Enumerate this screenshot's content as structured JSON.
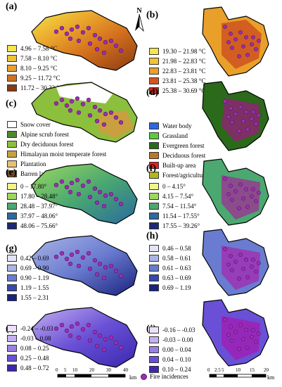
{
  "panels": [
    {
      "label": "(a)",
      "legend": [
        {
          "text": "4.96 – 7.58 °C",
          "color": "#f5e64a"
        },
        {
          "text": "7.58 – 8.10 °C",
          "color": "#f2c236"
        },
        {
          "text": "8.10 – 9.25 °C",
          "color": "#e8a02a"
        },
        {
          "text": "9.25 – 11.72 °C",
          "color": "#d4711e"
        },
        {
          "text": "11.72 – 30.33 °C",
          "color": "#8a3a12"
        }
      ]
    },
    {
      "label": "(b)",
      "legend": [
        {
          "text": "19.30 – 21.98 °C",
          "color": "#f5e64a"
        },
        {
          "text": "21.98 – 22.83 °C",
          "color": "#f2c236"
        },
        {
          "text": "22.83 – 23.81 °C",
          "color": "#e8a02a"
        },
        {
          "text": "23.81 – 25.38 °C",
          "color": "#d4551e"
        },
        {
          "text": "25.38 – 30.69 °C",
          "color": "#c0281a"
        }
      ]
    },
    {
      "label": "(c)",
      "legend": [
        {
          "text": "Snow cover",
          "color": "#ffffff"
        },
        {
          "text": "Alpine scrub forest",
          "color": "#4d8a2a"
        },
        {
          "text": "Dry deciduous forest",
          "color": "#8cbf3c"
        },
        {
          "text": "Himalayan moist temperate forest",
          "color": "#c8a040"
        },
        {
          "text": "Plantation",
          "color": "#e8c070"
        },
        {
          "text": "Barren land",
          "color": "#7a4a20"
        }
      ]
    },
    {
      "label": "(d)",
      "legend": [
        {
          "text": "Water body",
          "color": "#2a6ae0"
        },
        {
          "text": "Grassland",
          "color": "#5ccc3a"
        },
        {
          "text": "Evergreen forest",
          "color": "#2a6a1a"
        },
        {
          "text": "Deciduous forest",
          "color": "#b87a28"
        },
        {
          "text": "Built-up area",
          "color": "#e02020"
        },
        {
          "text": "Forest/agricultural plantation",
          "color": "#b4b420"
        }
      ]
    },
    {
      "label": "(e)",
      "legend": [
        {
          "text": "0 – 17.80°",
          "color": "#f0f58a"
        },
        {
          "text": "17.80 – 28.48°",
          "color": "#9cd860"
        },
        {
          "text": "28.48 – 37.97°",
          "color": "#4aa870"
        },
        {
          "text": "37.97 – 48.06°",
          "color": "#2a6aa0"
        },
        {
          "text": "48.06 – 75.66°",
          "color": "#1a2a78"
        }
      ]
    },
    {
      "label": "(f)",
      "legend": [
        {
          "text": "0 – 4.15°",
          "color": "#f0f58a"
        },
        {
          "text": "4.15 – 7.54°",
          "color": "#9cd860"
        },
        {
          "text": "7.54 – 11.54°",
          "color": "#4aa870"
        },
        {
          "text": "11.54 – 17.55°",
          "color": "#2a6aa0"
        },
        {
          "text": "17.55 – 39.26°",
          "color": "#1a2a78"
        }
      ]
    },
    {
      "label": "(g)",
      "legend": [
        {
          "text": "0.42 – 0.69",
          "color": "#e2e4f6"
        },
        {
          "text": "0.69 – 0.90",
          "color": "#aab4e6"
        },
        {
          "text": "0.90 – 1.19",
          "color": "#6a7cd0"
        },
        {
          "text": "1.19 – 1.55",
          "color": "#3848b0"
        },
        {
          "text": "1.55 – 2.31",
          "color": "#1a2280"
        }
      ]
    },
    {
      "label": "(h)",
      "legend": [
        {
          "text": "0.46 – 0.58",
          "color": "#e2e4f6"
        },
        {
          "text": "0.58 – 0.61",
          "color": "#aab4e6"
        },
        {
          "text": "0.61 – 0.63",
          "color": "#6a7cd0"
        },
        {
          "text": "0.63 – 0.69",
          "color": "#3848b0"
        },
        {
          "text": "0.69 – 1.19",
          "color": "#1a2280"
        }
      ]
    },
    {
      "label": "(i)",
      "legend": [
        {
          "text": "-0.24 – -0.03",
          "color": "#ece0fa"
        },
        {
          "text": "-0.03 – 0.08",
          "color": "#c4b0f0"
        },
        {
          "text": "0.08 – 0.25",
          "color": "#9a80e6"
        },
        {
          "text": "0.25 – 0.48",
          "color": "#6a50d6"
        },
        {
          "text": "0.48 – 0.72",
          "color": "#3a28b0"
        }
      ]
    },
    {
      "label": "(j)",
      "legend": [
        {
          "text": "-0.16 – -0.03",
          "color": "#ece0fa"
        },
        {
          "text": "-0.03 – 0.00",
          "color": "#c4b0f0"
        },
        {
          "text": "0.00 – 0.04",
          "color": "#9a80e6"
        },
        {
          "text": "0.04 – 0.10",
          "color": "#6a50d6"
        },
        {
          "text": "0.10 – 0.24",
          "color": "#3a28b0"
        }
      ]
    }
  ],
  "north_label": "N",
  "scale_left": {
    "ticks": [
      "0",
      "5",
      "10",
      "20",
      "30",
      "40"
    ],
    "unit": "km"
  },
  "scale_right": {
    "ticks": [
      "0",
      "2.5",
      "5",
      "10",
      "15",
      "20"
    ],
    "unit": "km"
  },
  "fire_legend": "Fire incidences",
  "colors": {
    "fire": "#9b2fb0",
    "outline": "#000000"
  }
}
